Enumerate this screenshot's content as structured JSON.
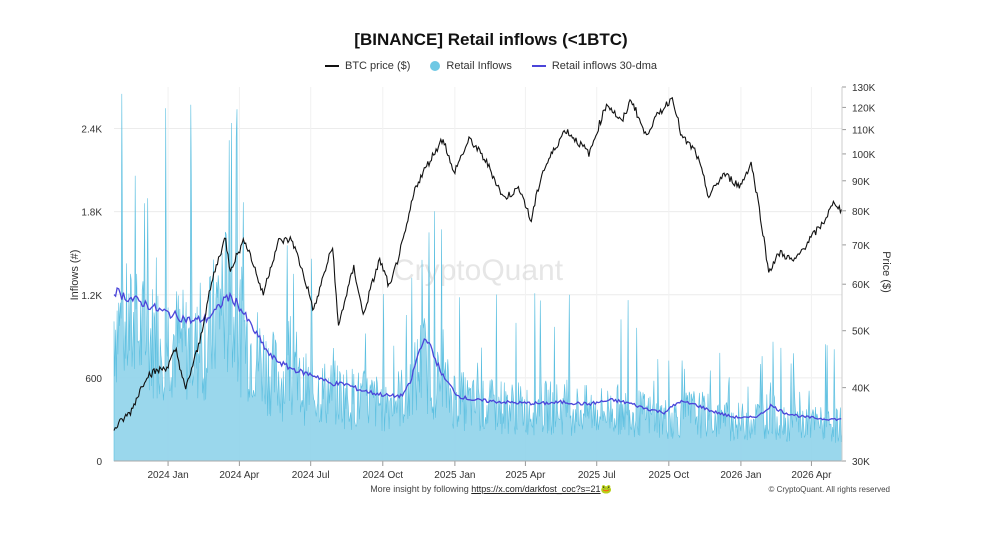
{
  "chart_data": {
    "type": "line",
    "title": "[BINANCE] Retail inflows (<1BTC)",
    "legend": [
      {
        "name": "BTC price ($)",
        "color": "#111111",
        "kind": "line"
      },
      {
        "name": "Retail Inflows",
        "color": "#6ec8e4",
        "kind": "dot"
      },
      {
        "name": "Retail inflows 30-dma",
        "color": "#4b45d9",
        "kind": "line"
      }
    ],
    "ylabel_left": "Inflows (#)",
    "ylabel_right": "Price ($)",
    "y_left_ticks": [
      "0",
      "600",
      "1.2K",
      "1.8K",
      "2.4K"
    ],
    "y_left_range": [
      0,
      2700
    ],
    "y_right_scale": "log",
    "y_right_range": [
      30000,
      130000
    ],
    "y_right_ticks": [
      "30K",
      "40K",
      "50K",
      "60K",
      "70K",
      "80K",
      "90K",
      "100K",
      "110K",
      "120K",
      "130K"
    ],
    "x_ticks": [
      "2024 Jan",
      "2024 Apr",
      "2024 Jul",
      "2024 Oct",
      "2025 Jan",
      "2025 Apr",
      "2025 Jul",
      "2025 Oct",
      "2026 Jan",
      "2026 Apr"
    ],
    "x_range": [
      "2023-10-24",
      "2026-05-10"
    ],
    "grid": true,
    "legend_position": "top-center",
    "series": [
      {
        "name": "BTC price ($)",
        "points": [
          [
            "2023-10-24",
            34000
          ],
          [
            "2023-11-15",
            36500
          ],
          [
            "2023-12-05",
            42000
          ],
          [
            "2024-01-01",
            43500
          ],
          [
            "2024-01-11",
            46500
          ],
          [
            "2024-01-23",
            39500
          ],
          [
            "2024-02-10",
            47500
          ],
          [
            "2024-02-28",
            62000
          ],
          [
            "2024-03-14",
            72000
          ],
          [
            "2024-03-20",
            63500
          ],
          [
            "2024-04-08",
            71500
          ],
          [
            "2024-05-01",
            57500
          ],
          [
            "2024-05-21",
            71000
          ],
          [
            "2024-06-07",
            71500
          ],
          [
            "2024-07-05",
            54000
          ],
          [
            "2024-07-29",
            69500
          ],
          [
            "2024-08-05",
            50500
          ],
          [
            "2024-08-25",
            64000
          ],
          [
            "2024-09-06",
            53000
          ],
          [
            "2024-09-27",
            66000
          ],
          [
            "2024-10-10",
            59000
          ],
          [
            "2024-10-29",
            72500
          ],
          [
            "2024-11-12",
            88000
          ],
          [
            "2024-12-05",
            100000
          ],
          [
            "2024-12-17",
            106500
          ],
          [
            "2024-12-30",
            92500
          ],
          [
            "2025-01-20",
            106000
          ],
          [
            "2025-02-10",
            97000
          ],
          [
            "2025-03-04",
            84000
          ],
          [
            "2025-03-25",
            87500
          ],
          [
            "2025-04-08",
            76500
          ],
          [
            "2025-04-22",
            92500
          ],
          [
            "2025-05-22",
            110000
          ],
          [
            "2025-06-22",
            100000
          ],
          [
            "2025-07-14",
            122000
          ],
          [
            "2025-08-02",
            113000
          ],
          [
            "2025-08-14",
            124000
          ],
          [
            "2025-09-01",
            107500
          ],
          [
            "2025-09-18",
            117000
          ],
          [
            "2025-10-06",
            125000
          ],
          [
            "2025-10-17",
            107000
          ],
          [
            "2025-11-04",
            101000
          ],
          [
            "2025-11-21",
            84500
          ],
          [
            "2025-12-10",
            92500
          ],
          [
            "2025-12-31",
            88000
          ],
          [
            "2026-01-14",
            96500
          ],
          [
            "2026-02-05",
            63000
          ],
          [
            "2026-02-20",
            68000
          ],
          [
            "2026-03-10",
            65500
          ],
          [
            "2026-03-28",
            71000
          ],
          [
            "2026-04-15",
            76000
          ],
          [
            "2026-05-01",
            83000
          ],
          [
            "2026-05-10",
            79500
          ]
        ]
      },
      {
        "name": "Retail Inflows",
        "points": [
          [
            "2023-10-24",
            1100
          ],
          [
            "2023-11-01",
            1050
          ],
          [
            "2023-11-20",
            1000
          ],
          [
            "2023-12-10",
            950
          ],
          [
            "2024-01-01",
            980
          ],
          [
            "2024-01-20",
            900
          ],
          [
            "2024-02-10",
            850
          ],
          [
            "2024-02-25",
            1000
          ],
          [
            "2024-03-10",
            1300
          ],
          [
            "2024-03-25",
            1100
          ],
          [
            "2024-04-15",
            900
          ],
          [
            "2024-05-10",
            700
          ],
          [
            "2024-06-01",
            600
          ],
          [
            "2024-07-01",
            550
          ],
          [
            "2024-08-05",
            520
          ],
          [
            "2024-09-01",
            480
          ],
          [
            "2024-10-01",
            450
          ],
          [
            "2024-11-05",
            520
          ],
          [
            "2024-11-20",
            800
          ],
          [
            "2024-12-10",
            600
          ],
          [
            "2025-01-05",
            480
          ],
          [
            "2025-02-01",
            420
          ],
          [
            "2025-03-01",
            430
          ],
          [
            "2025-04-01",
            400
          ],
          [
            "2025-05-01",
            420
          ],
          [
            "2025-06-01",
            400
          ],
          [
            "2025-07-01",
            390
          ],
          [
            "2025-08-01",
            400
          ],
          [
            "2025-09-01",
            360
          ],
          [
            "2025-10-01",
            330
          ],
          [
            "2025-11-01",
            380
          ],
          [
            "2025-12-01",
            330
          ],
          [
            "2026-01-01",
            300
          ],
          [
            "2026-02-05",
            360
          ],
          [
            "2026-03-01",
            300
          ],
          [
            "2026-04-01",
            290
          ],
          [
            "2026-05-10",
            280
          ]
        ]
      },
      {
        "name": "Retail inflows 30-dma",
        "points": [
          [
            "2023-10-24",
            1230
          ],
          [
            "2023-11-10",
            1180
          ],
          [
            "2023-12-01",
            1140
          ],
          [
            "2023-12-20",
            1090
          ],
          [
            "2024-01-10",
            1050
          ],
          [
            "2024-02-01",
            1010
          ],
          [
            "2024-02-20",
            1030
          ],
          [
            "2024-03-05",
            1100
          ],
          [
            "2024-03-15",
            1190
          ],
          [
            "2024-03-28",
            1150
          ],
          [
            "2024-04-20",
            940
          ],
          [
            "2024-05-10",
            760
          ],
          [
            "2024-06-01",
            680
          ],
          [
            "2024-06-20",
            640
          ],
          [
            "2024-07-10",
            610
          ],
          [
            "2024-07-25",
            560
          ],
          [
            "2024-08-15",
            555
          ],
          [
            "2024-09-01",
            515
          ],
          [
            "2024-09-20",
            490
          ],
          [
            "2024-10-10",
            470
          ],
          [
            "2024-10-25",
            470
          ],
          [
            "2024-11-05",
            560
          ],
          [
            "2024-11-15",
            770
          ],
          [
            "2024-11-25",
            900
          ],
          [
            "2024-12-05",
            760
          ],
          [
            "2024-12-18",
            600
          ],
          [
            "2025-01-05",
            470
          ],
          [
            "2025-01-25",
            440
          ],
          [
            "2025-02-20",
            430
          ],
          [
            "2025-03-20",
            420
          ],
          [
            "2025-04-20",
            415
          ],
          [
            "2025-05-20",
            425
          ],
          [
            "2025-06-20",
            410
          ],
          [
            "2025-07-20",
            440
          ],
          [
            "2025-08-10",
            420
          ],
          [
            "2025-09-01",
            380
          ],
          [
            "2025-09-25",
            350
          ],
          [
            "2025-10-15",
            430
          ],
          [
            "2025-11-05",
            405
          ],
          [
            "2025-11-25",
            360
          ],
          [
            "2025-12-20",
            320
          ],
          [
            "2026-01-10",
            310
          ],
          [
            "2026-01-25",
            330
          ],
          [
            "2026-02-08",
            400
          ],
          [
            "2026-02-25",
            350
          ],
          [
            "2026-03-20",
            320
          ],
          [
            "2026-04-15",
            305
          ],
          [
            "2026-05-10",
            300
          ]
        ]
      }
    ],
    "watermark": "CryptoQuant"
  },
  "footer": {
    "insight_prefix": "More insight by following ",
    "insight_link": "https://x.com/darkfost_coc?s=21",
    "insight_emoji": "🐸",
    "copyright": "© CryptoQuant. All rights reserved"
  }
}
